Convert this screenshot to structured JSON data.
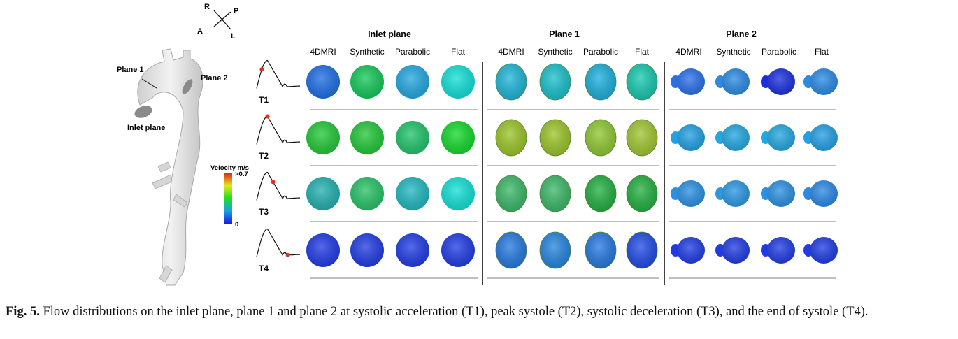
{
  "orientation": {
    "R": "R",
    "P": "P",
    "A": "A",
    "L": "L"
  },
  "aorta_labels": {
    "plane1": "Plane 1",
    "plane2": "Plane 2",
    "inlet": "Inlet plane"
  },
  "colorbar": {
    "title": "Velocity m/s",
    "max": ">0.7",
    "min": "0"
  },
  "groups": [
    {
      "title": "Inlet plane",
      "columns": [
        "4DMRI",
        "Synthetic",
        "Parabolic",
        "Flat"
      ]
    },
    {
      "title": "Plane 1",
      "columns": [
        "4DMRI",
        "Synthetic",
        "Parabolic",
        "Flat"
      ]
    },
    {
      "title": "Plane 2",
      "columns": [
        "4DMRI",
        "Synthetic",
        "Parabolic",
        "Flat"
      ]
    }
  ],
  "time_points": [
    "T1",
    "T2",
    "T3",
    "T4"
  ],
  "cells": {
    "inlet": [
      [
        "#1d6de6",
        "#13c858",
        "#22a8e0",
        "#12e0d8"
      ],
      [
        "#22c838",
        "#22c838",
        "#20c468",
        "#14d82a"
      ],
      [
        "#22b0b0",
        "#28c268",
        "#20b8c0",
        "#12e0d8"
      ],
      [
        "#1f39e6",
        "#1f3be4",
        "#1f3be4",
        "#1f3be4"
      ]
    ],
    "plane1": [
      [
        "#1cb6d8",
        "#18c0cc",
        "#1ab0dc",
        "#16c8b0"
      ],
      [
        "#9cc428",
        "#9cc428",
        "#90c830",
        "#a0c630"
      ],
      [
        "#3ab868",
        "#3ab868",
        "#22b040",
        "#22b040"
      ],
      [
        "#2478e0",
        "#2484e0",
        "#2478e0",
        "#1f4ae6"
      ]
    ],
    "plane2": [
      [
        "#2a6fe8",
        "#2a8ae4",
        "#1a2ee0",
        "#2a8ae4"
      ],
      [
        "#22a0e4",
        "#22a8e0",
        "#22a8e0",
        "#22a0e4"
      ],
      [
        "#2a90e4",
        "#2a98e4",
        "#2a90e4",
        "#2a88e6"
      ],
      [
        "#1f3be4",
        "#1f3be4",
        "#1f3be4",
        "#1f3be4"
      ]
    ]
  },
  "caption": {
    "label": "Fig. 5.",
    "text": " Flow distributions on the inlet plane, plane 1 and plane 2 at systolic acceleration (T1), peak systole (T2), systolic deceleration (T3), and the end of systole (T4)."
  }
}
